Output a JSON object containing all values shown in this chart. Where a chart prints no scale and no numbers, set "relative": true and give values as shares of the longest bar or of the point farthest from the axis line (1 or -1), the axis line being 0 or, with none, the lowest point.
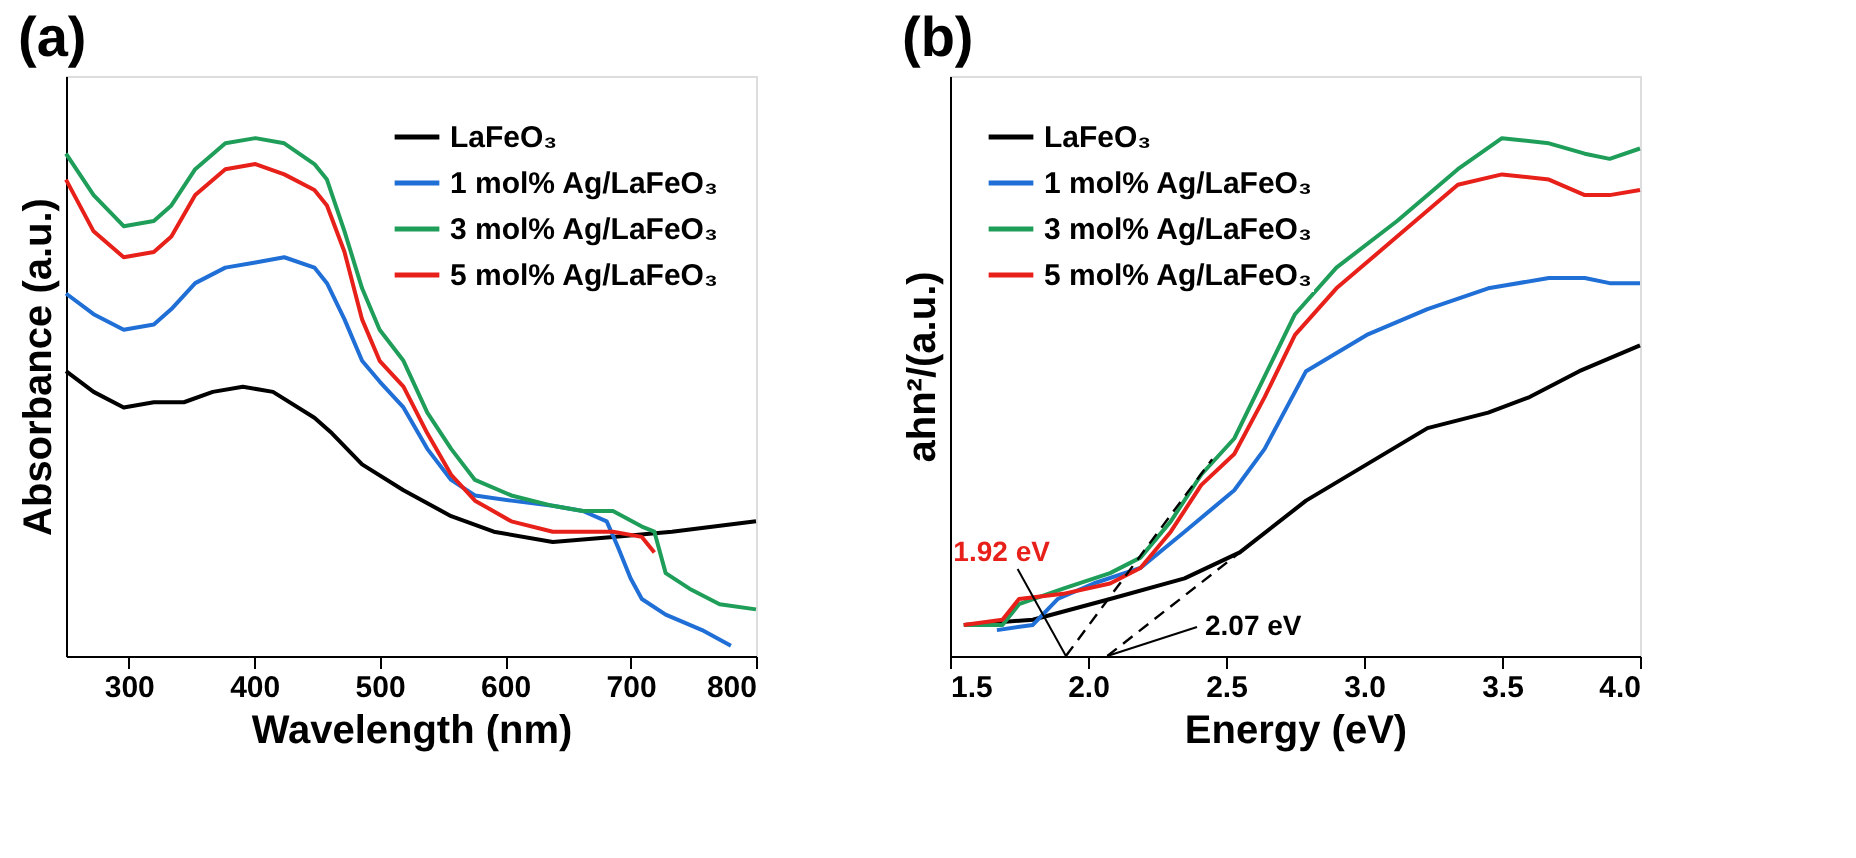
{
  "chart_data": [
    {
      "type": "line",
      "title": "(a)",
      "xlabel": "Wavelength (nm)",
      "ylabel": "Absorbance (a.u.)",
      "relative": true,
      "xlim": [
        250,
        800
      ],
      "xticks": [
        300,
        400,
        500,
        600,
        700,
        800
      ],
      "legend": "top right",
      "grid": false,
      "line_style": "solid",
      "tick_labels": "x",
      "series": [
        {
          "name": "LaFeO₃",
          "color": "#000000",
          "x": [
            250,
            272,
            296,
            320,
            344,
            367,
            391,
            415,
            448,
            462,
            486,
            519,
            557,
            591,
            638,
            686,
            733,
            800
          ],
          "values": [
            0.55,
            0.51,
            0.48,
            0.49,
            0.49,
            0.51,
            0.52,
            0.51,
            0.46,
            0.43,
            0.37,
            0.32,
            0.27,
            0.24,
            0.22,
            0.23,
            0.24,
            0.26
          ]
        },
        {
          "name": "1 mol% Ag/LaFeO₃",
          "color": "#1f6fd6",
          "x": [
            250,
            272,
            296,
            320,
            334,
            353,
            377,
            401,
            424,
            448,
            458,
            472,
            486,
            500,
            519,
            538,
            557,
            576,
            605,
            638,
            662,
            681,
            690,
            700,
            709,
            728,
            757,
            780
          ],
          "values": [
            0.7,
            0.66,
            0.63,
            0.64,
            0.67,
            0.72,
            0.75,
            0.76,
            0.77,
            0.75,
            0.72,
            0.65,
            0.57,
            0.53,
            0.48,
            0.4,
            0.34,
            0.31,
            0.3,
            0.29,
            0.28,
            0.26,
            0.21,
            0.15,
            0.11,
            0.08,
            0.05,
            0.02
          ]
        },
        {
          "name": "3 mol% Ag/LaFeO₃",
          "color": "#1f9e5a",
          "x": [
            250,
            272,
            296,
            320,
            334,
            353,
            377,
            401,
            424,
            448,
            458,
            472,
            486,
            500,
            519,
            538,
            557,
            576,
            605,
            638,
            662,
            686,
            709,
            719,
            728,
            747,
            771,
            800
          ],
          "values": [
            0.97,
            0.89,
            0.83,
            0.84,
            0.87,
            0.94,
            0.99,
            1.0,
            0.99,
            0.95,
            0.92,
            0.82,
            0.71,
            0.63,
            0.57,
            0.47,
            0.4,
            0.34,
            0.31,
            0.29,
            0.28,
            0.28,
            0.25,
            0.24,
            0.16,
            0.13,
            0.1,
            0.09
          ]
        },
        {
          "name": "5 mol% Ag/LaFeO₃",
          "color": "#e8201a",
          "x": [
            250,
            272,
            296,
            320,
            334,
            353,
            377,
            401,
            424,
            448,
            458,
            472,
            486,
            500,
            519,
            538,
            557,
            576,
            605,
            638,
            662,
            686,
            709,
            719
          ],
          "values": [
            0.92,
            0.82,
            0.77,
            0.78,
            0.81,
            0.89,
            0.94,
            0.95,
            0.93,
            0.9,
            0.87,
            0.78,
            0.65,
            0.57,
            0.52,
            0.43,
            0.35,
            0.3,
            0.26,
            0.24,
            0.24,
            0.24,
            0.23,
            0.2
          ]
        }
      ]
    },
    {
      "type": "line",
      "title": "(b)",
      "xlabel": "Energy (eV)",
      "ylabel": "ahn²/(a.u.)",
      "relative": true,
      "xlim": [
        1.5,
        4.0
      ],
      "xticks": [
        {
          "value": 1.5,
          "label": "1.5"
        },
        {
          "value": 2.0,
          "label": "2.0"
        },
        {
          "value": 2.5,
          "label": "2.5"
        },
        {
          "value": 3.0,
          "label": "3.0"
        },
        {
          "value": 3.5,
          "label": "3.5"
        },
        {
          "value": 4.0,
          "label": "4.0"
        }
      ],
      "legend": "top left",
      "grid": false,
      "line_style": "solid",
      "tick_labels": "x",
      "annotations": [
        {
          "text": "1.92 eV",
          "x": 1.92,
          "y": 0.0
        },
        {
          "text": "2.07 eV",
          "x": 2.07,
          "y": 0.0
        }
      ],
      "series": [
        {
          "name": "LaFeO₃",
          "color": "#000000",
          "x": [
            1.55,
            1.8,
            2.08,
            2.35,
            2.55,
            2.79,
            3.01,
            3.23,
            3.45,
            3.6,
            3.78,
            4.0
          ],
          "values": [
            0.06,
            0.07,
            0.11,
            0.15,
            0.2,
            0.3,
            0.37,
            0.44,
            0.47,
            0.5,
            0.55,
            0.6
          ]
        },
        {
          "name": "1 mol% Ag/LaFeO₃",
          "color": "#1f6fd6",
          "x": [
            1.67,
            1.8,
            1.89,
            2.02,
            2.19,
            2.35,
            2.53,
            2.64,
            2.79,
            3.01,
            3.23,
            3.45,
            3.67,
            3.8,
            3.89,
            4.0
          ],
          "values": [
            0.05,
            0.06,
            0.11,
            0.14,
            0.17,
            0.24,
            0.32,
            0.4,
            0.55,
            0.62,
            0.67,
            0.71,
            0.73,
            0.73,
            0.72,
            0.72
          ]
        },
        {
          "name": "3 mol% Ag/LaFeO₃",
          "color": "#1f9e5a",
          "x": [
            1.55,
            1.69,
            1.75,
            1.91,
            2.08,
            2.19,
            2.3,
            2.41,
            2.53,
            2.64,
            2.75,
            2.9,
            3.12,
            3.34,
            3.5,
            3.67,
            3.8,
            3.89,
            4.0
          ],
          "values": [
            0.06,
            0.06,
            0.1,
            0.13,
            0.16,
            0.19,
            0.26,
            0.35,
            0.42,
            0.54,
            0.66,
            0.75,
            0.84,
            0.94,
            1.0,
            0.99,
            0.97,
            0.96,
            0.98
          ]
        },
        {
          "name": "5 mol% Ag/LaFeO₃",
          "color": "#e8201a",
          "x": [
            1.55,
            1.69,
            1.75,
            1.91,
            2.08,
            2.19,
            2.3,
            2.41,
            2.53,
            2.64,
            2.75,
            2.9,
            3.12,
            3.34,
            3.5,
            3.67,
            3.8,
            3.89,
            4.0
          ],
          "values": [
            0.06,
            0.07,
            0.11,
            0.12,
            0.14,
            0.17,
            0.24,
            0.33,
            0.39,
            0.5,
            0.62,
            0.71,
            0.81,
            0.91,
            0.93,
            0.92,
            0.89,
            0.89,
            0.9
          ]
        },
        {
          "type": "line",
          "color": "#000000",
          "line_style": "dashed",
          "x": [
            1.92,
            2.45
          ],
          "values": [
            0.0,
            0.38
          ]
        },
        {
          "type": "line",
          "color": "#000000",
          "line_style": "dashed",
          "x": [
            2.07,
            2.55
          ],
          "values": [
            0.0,
            0.2
          ]
        }
      ]
    }
  ]
}
